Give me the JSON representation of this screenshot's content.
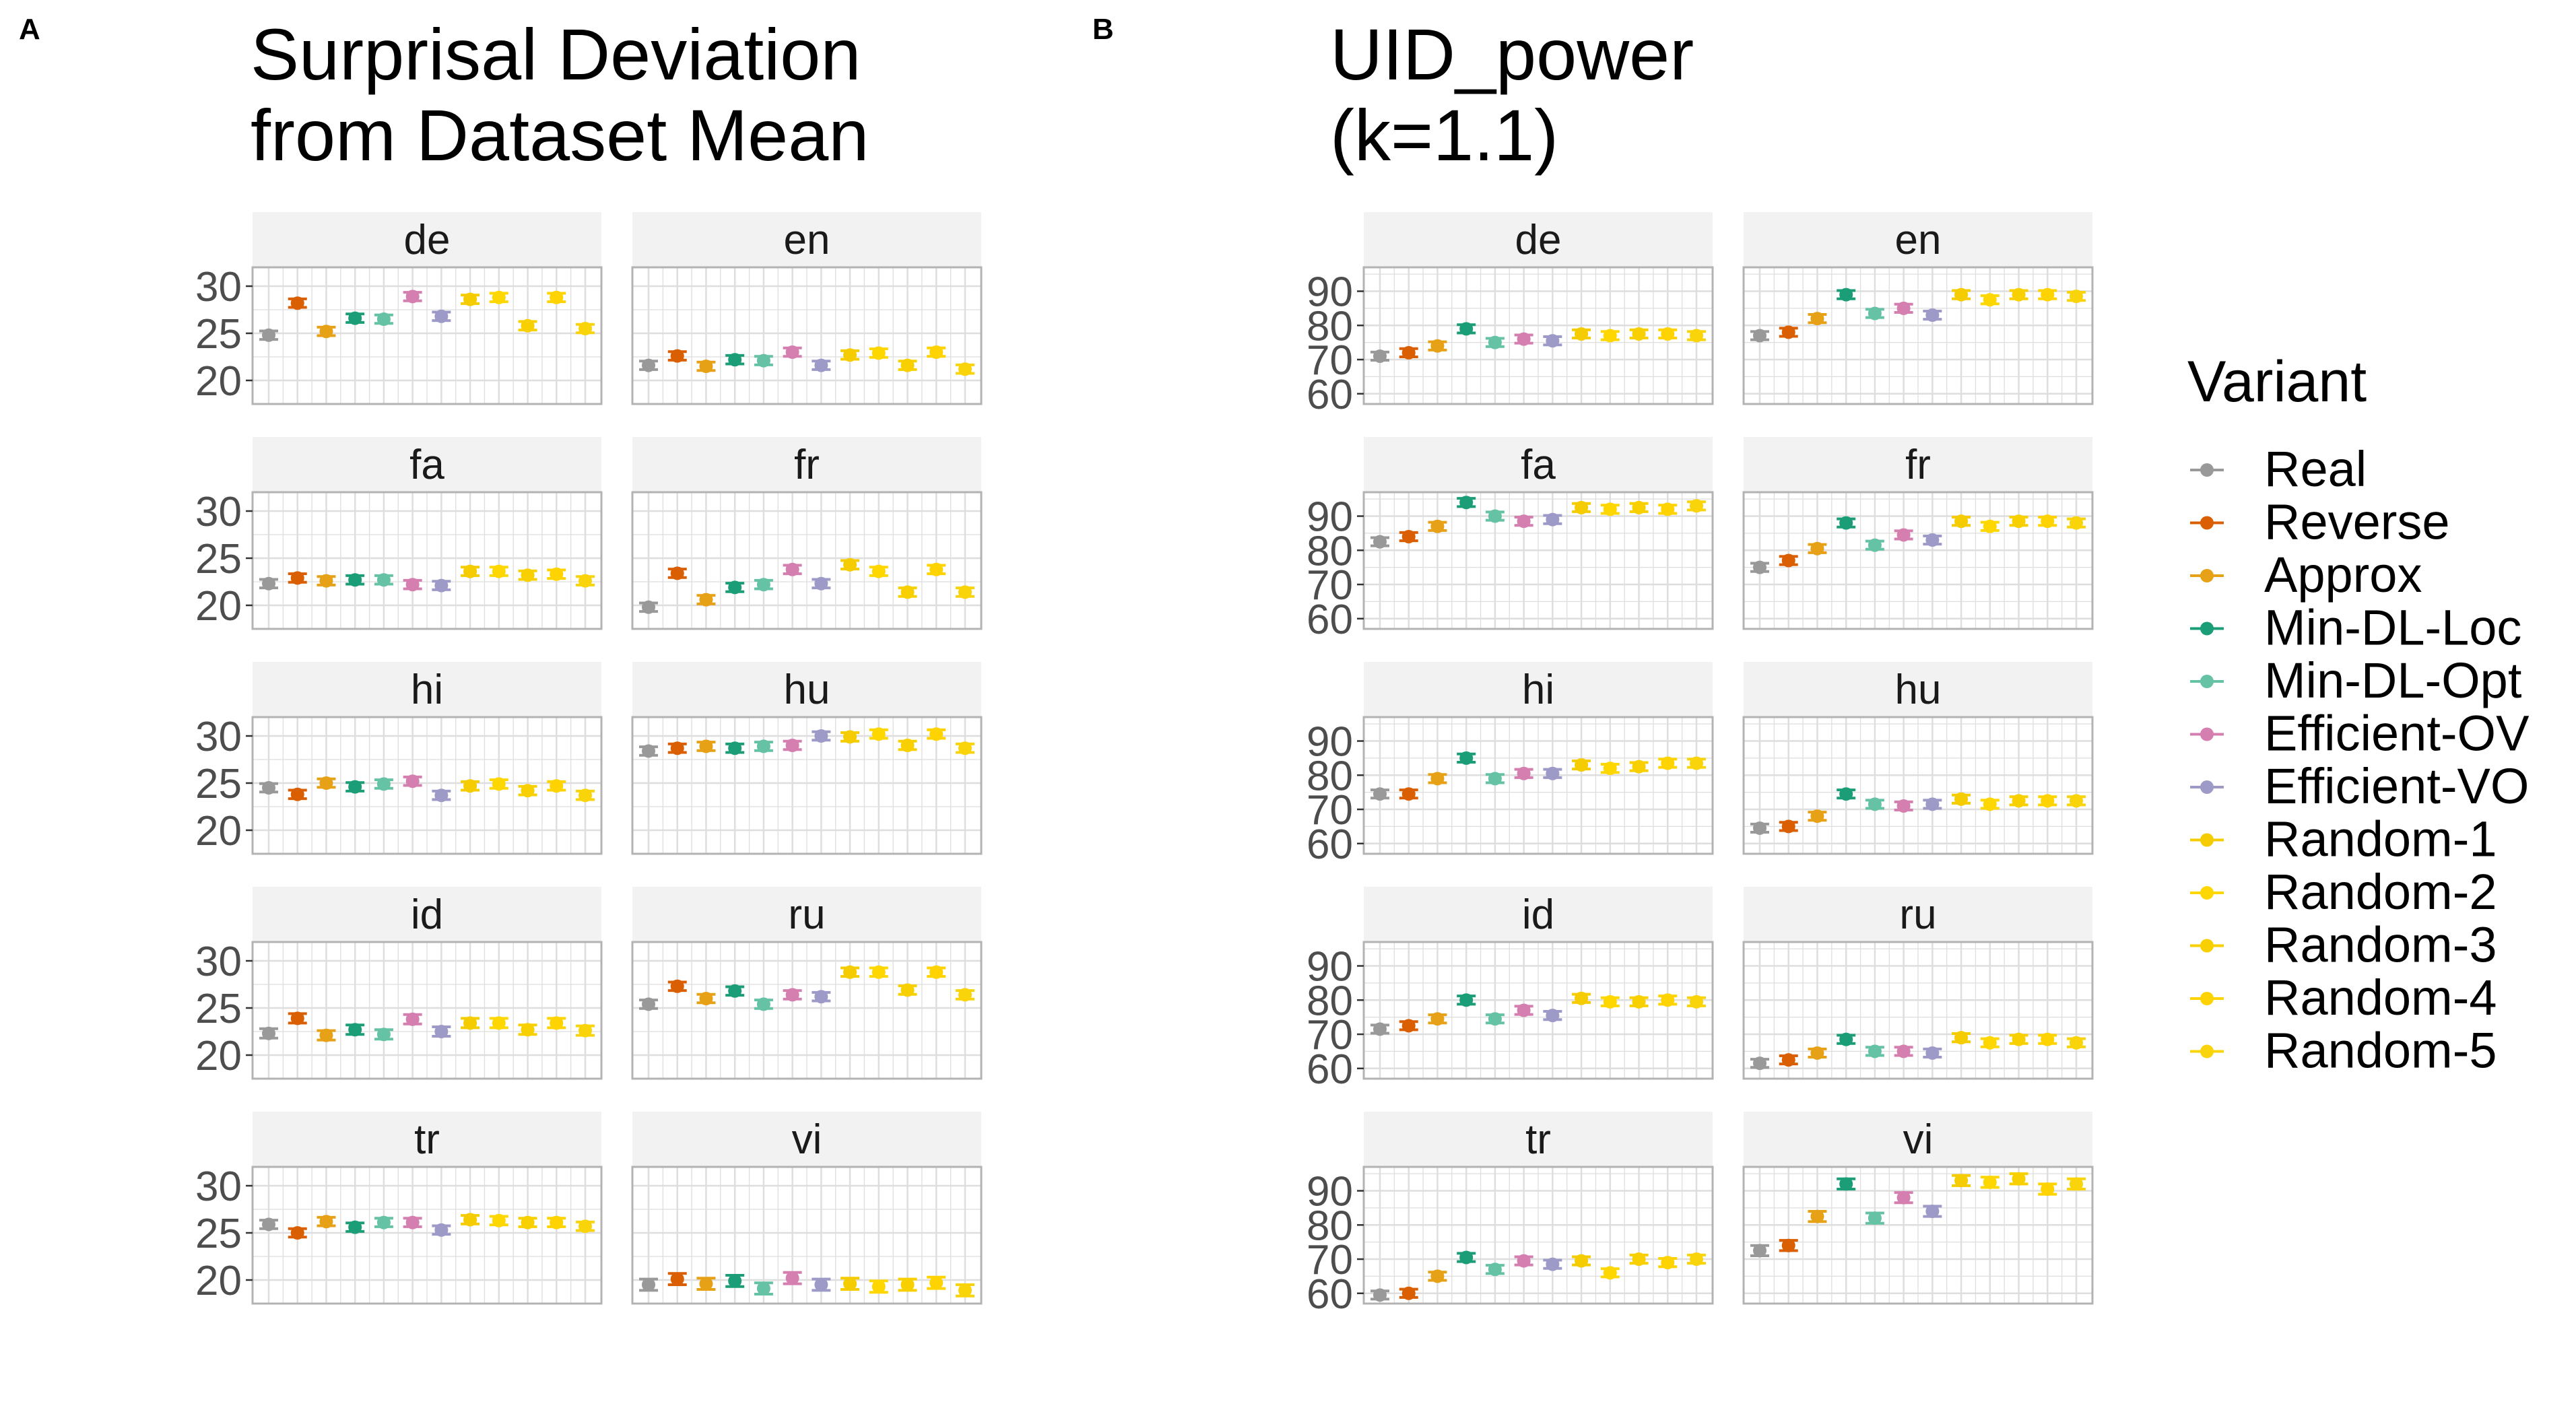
{
  "panel_labels": [
    "A",
    "B"
  ],
  "legend": {
    "title": "Variant",
    "items": [
      "Real",
      "Reverse",
      "Approx",
      "Min-DL-Loc",
      "Min-DL-Opt",
      "Efficient-OV",
      "Efficient-VO",
      "Random-1",
      "Random-2",
      "Random-3",
      "Random-4",
      "Random-5"
    ]
  },
  "colors": {
    "Real": "#999999",
    "Reverse": "#D95F02",
    "Approx": "#E6A117",
    "Min-DL-Loc": "#1B9E77",
    "Min-DL-Opt": "#66C2A5",
    "Efficient-OV": "#D47FB0",
    "Efficient-VO": "#9E9AC8",
    "Random-1": "#F5CC00",
    "Random-2": "#FFD700",
    "Random-3": "#F8D000",
    "Random-4": "#FFD300",
    "Random-5": "#FAD40A",
    "strip_bg": "#F2F2F2",
    "grid": "#DEDEDE",
    "border": "#B3B3B3"
  },
  "chart_data": [
    {
      "type": "scatter",
      "error_bars": true,
      "panel": "A",
      "title": "Surprisal Deviation\nfrom Dataset Mean",
      "xlabel": "",
      "ylabel": "",
      "ylim": [
        17.5,
        32
      ],
      "yticks": [
        20,
        25,
        30
      ],
      "grid": true,
      "facets": [
        {
          "name": "de",
          "values": [
            24.8,
            28.2,
            25.2,
            26.6,
            26.5,
            28.9,
            26.8,
            28.6,
            28.8,
            25.8,
            28.8,
            25.5
          ],
          "err": 0.45
        },
        {
          "name": "en",
          "values": [
            21.6,
            22.6,
            21.5,
            22.2,
            22.1,
            23.0,
            21.6,
            22.7,
            22.9,
            21.6,
            23.0,
            21.2
          ],
          "err": 0.45
        },
        {
          "name": "fa",
          "values": [
            22.3,
            22.9,
            22.6,
            22.7,
            22.7,
            22.2,
            22.1,
            23.6,
            23.6,
            23.2,
            23.3,
            22.6
          ],
          "err": 0.45
        },
        {
          "name": "fr",
          "values": [
            19.8,
            23.4,
            20.6,
            21.9,
            22.2,
            23.8,
            22.3,
            24.3,
            23.6,
            21.4,
            23.8,
            21.4
          ],
          "err": 0.45
        },
        {
          "name": "hi",
          "values": [
            24.5,
            23.8,
            25.0,
            24.6,
            24.9,
            25.2,
            23.7,
            24.7,
            24.9,
            24.2,
            24.7,
            23.7
          ],
          "err": 0.45
        },
        {
          "name": "hu",
          "values": [
            28.4,
            28.7,
            28.9,
            28.7,
            28.9,
            29.0,
            30.0,
            29.9,
            30.2,
            29.0,
            30.2,
            28.7
          ],
          "err": 0.45
        },
        {
          "name": "id",
          "values": [
            22.3,
            23.9,
            22.1,
            22.7,
            22.2,
            23.8,
            22.5,
            23.4,
            23.4,
            22.7,
            23.4,
            22.6
          ],
          "err": 0.5
        },
        {
          "name": "ru",
          "values": [
            25.4,
            27.3,
            26.0,
            26.8,
            25.4,
            26.4,
            26.2,
            28.8,
            28.8,
            26.9,
            28.8,
            26.4
          ],
          "err": 0.45
        },
        {
          "name": "tr",
          "values": [
            25.9,
            25.0,
            26.2,
            25.6,
            26.1,
            26.1,
            25.3,
            26.4,
            26.3,
            26.1,
            26.1,
            25.7
          ],
          "err": 0.45
        },
        {
          "name": "vi",
          "values": [
            19.5,
            20.1,
            19.6,
            19.9,
            19.1,
            20.2,
            19.5,
            19.6,
            19.3,
            19.5,
            19.7,
            18.9
          ],
          "err": 0.6
        }
      ]
    },
    {
      "type": "scatter",
      "error_bars": true,
      "panel": "B",
      "title": "UID_power\n(k=1.1)",
      "xlabel": "",
      "ylabel": "",
      "ylim": [
        57,
        97
      ],
      "yticks": [
        60,
        70,
        80,
        90
      ],
      "grid": true,
      "facets": [
        {
          "name": "de",
          "values": [
            71,
            72,
            74,
            79,
            75,
            76,
            75.5,
            77.5,
            77,
            77.5,
            77.5,
            77
          ],
          "err": 1.2
        },
        {
          "name": "en",
          "values": [
            77,
            78,
            82,
            89,
            83.5,
            85,
            83,
            89,
            87.5,
            89,
            89,
            88.5
          ],
          "err": 1.2
        },
        {
          "name": "fa",
          "values": [
            82.5,
            84,
            87,
            94,
            90,
            88.5,
            89,
            92.5,
            92,
            92.5,
            92,
            93
          ],
          "err": 1.2
        },
        {
          "name": "fr",
          "values": [
            75,
            77,
            80.5,
            88,
            81.5,
            84.5,
            83,
            88.5,
            87,
            88.5,
            88.5,
            88
          ],
          "err": 1.2
        },
        {
          "name": "hi",
          "values": [
            74.5,
            74.5,
            79,
            85,
            79,
            80.5,
            80.5,
            83,
            82,
            82.5,
            83.5,
            83.5
          ],
          "err": 1.2
        },
        {
          "name": "hu",
          "values": [
            64.5,
            65,
            68,
            74.5,
            71.5,
            71,
            71.5,
            73,
            71.5,
            72.5,
            72.5,
            72.5
          ],
          "err": 1.2
        },
        {
          "name": "id",
          "values": [
            71.5,
            72.5,
            74.5,
            80,
            74.5,
            77,
            75.5,
            80.5,
            79.5,
            79.5,
            80,
            79.5
          ],
          "err": 1.2
        },
        {
          "name": "ru",
          "values": [
            61.5,
            62.5,
            64.5,
            68.5,
            65,
            65,
            64.5,
            69,
            67.5,
            68.5,
            68.5,
            67.5
          ],
          "err": 1.2
        },
        {
          "name": "tr",
          "values": [
            59.5,
            60,
            65,
            70.5,
            67,
            69.5,
            68.5,
            69.5,
            66,
            70,
            69,
            70
          ],
          "err": 1.2
        },
        {
          "name": "vi",
          "values": [
            72.5,
            74,
            82.5,
            92,
            82,
            88,
            84,
            93,
            92.5,
            93.5,
            90.5,
            92
          ],
          "err": 1.5
        }
      ]
    }
  ]
}
